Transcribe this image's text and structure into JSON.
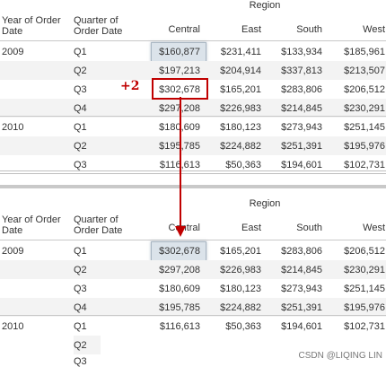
{
  "top": {
    "region_label": "Region",
    "year_header": "Year of Order Date",
    "quarter_header": "Quarter of Order Date",
    "columns": [
      "Central",
      "East",
      "South",
      "West"
    ],
    "rows": [
      {
        "year": "2009",
        "quarter": "Q1",
        "values": [
          "$160,877",
          "$231,411",
          "$133,934",
          "$185,961"
        ]
      },
      {
        "year": "",
        "quarter": "Q2",
        "values": [
          "$197,213",
          "$204,914",
          "$337,813",
          "$213,507"
        ]
      },
      {
        "year": "",
        "quarter": "Q3",
        "values": [
          "$302,678",
          "$165,201",
          "$283,806",
          "$206,512"
        ]
      },
      {
        "year": "",
        "quarter": "Q4",
        "values": [
          "$297,208",
          "$226,983",
          "$214,845",
          "$230,291"
        ]
      },
      {
        "year": "2010",
        "quarter": "Q1",
        "values": [
          "$180,609",
          "$180,123",
          "$273,943",
          "$251,145"
        ]
      },
      {
        "year": "",
        "quarter": "Q2",
        "values": [
          "$195,785",
          "$224,882",
          "$251,391",
          "$195,976"
        ]
      },
      {
        "year": "",
        "quarter": "Q3",
        "values": [
          "$116,613",
          "$50,363",
          "$194,601",
          "$102,731"
        ]
      }
    ]
  },
  "bottom": {
    "region_label": "Region",
    "year_header": "Year of Order Date",
    "quarter_header": "Quarter of Order Date",
    "columns": [
      "Central",
      "East",
      "South",
      "West"
    ],
    "rows": [
      {
        "year": "2009",
        "quarter": "Q1",
        "values": [
          "$302,678",
          "$165,201",
          "$283,806",
          "$206,512"
        ]
      },
      {
        "year": "",
        "quarter": "Q2",
        "values": [
          "$297,208",
          "$226,983",
          "$214,845",
          "$230,291"
        ]
      },
      {
        "year": "",
        "quarter": "Q3",
        "values": [
          "$180,609",
          "$180,123",
          "$273,943",
          "$251,145"
        ]
      },
      {
        "year": "",
        "quarter": "Q4",
        "values": [
          "$195,785",
          "$224,882",
          "$251,391",
          "$195,976"
        ]
      },
      {
        "year": "2010",
        "quarter": "Q1",
        "values": [
          "$116,613",
          "$50,363",
          "$194,601",
          "$102,731"
        ]
      },
      {
        "year": "",
        "quarter": "Q2",
        "values": [
          "",
          "",
          "",
          ""
        ]
      },
      {
        "year": "",
        "quarter": "Q3",
        "values": [
          "",
          "",
          "",
          ""
        ]
      }
    ]
  },
  "annotation": {
    "offset_label": "+2",
    "accent_color": "#c00000",
    "arrow_icon": "arrow-down-icon"
  },
  "watermark": "CSDN @LIQING LIN"
}
